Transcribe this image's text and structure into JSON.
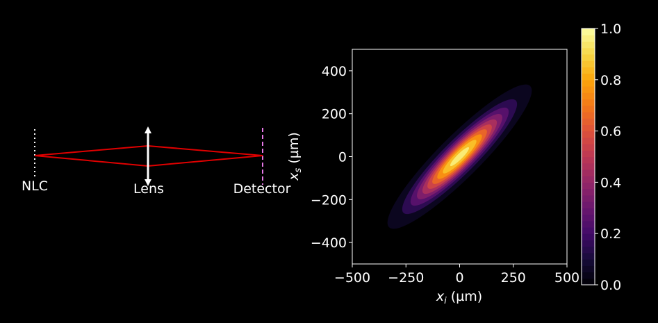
{
  "background": "#000000",
  "diagram": {
    "labels": {
      "source": "NLC",
      "lens": "Lens",
      "detector": "Detector"
    },
    "colors": {
      "rays": "#e00000",
      "source_line": "#ffffff",
      "lens": "#ffffff",
      "detector_line": "#e879e8"
    }
  },
  "chart_data": {
    "type": "heatmap",
    "title": "",
    "xlabel_main": "x",
    "xlabel_sub": "i",
    "xlabel_unit": " (µm)",
    "ylabel_main": "x",
    "ylabel_sub": "s",
    "ylabel_unit": " (µm)",
    "xlim": [
      -500,
      500
    ],
    "ylim": [
      -500,
      500
    ],
    "x_ticks": [
      -500,
      -250,
      0,
      250,
      500
    ],
    "x_tick_labels": [
      "−500",
      "−250",
      "0",
      "250",
      "500"
    ],
    "y_ticks": [
      400,
      200,
      0,
      -200,
      -400
    ],
    "y_tick_labels": [
      "400",
      "200",
      "0",
      "−200",
      "−400"
    ],
    "colormap": "inferno",
    "colorbar": {
      "range": [
        0,
        1
      ],
      "ticks": [
        0.0,
        0.2,
        0.4,
        0.6,
        0.8,
        1.0
      ],
      "tick_labels": [
        "0.0",
        "0.2",
        "0.4",
        "0.6",
        "0.8",
        "1.0"
      ]
    },
    "distribution": {
      "shape": "correlated 2D Gaussian (filled contours)",
      "center": [
        0,
        0
      ],
      "sigma_plus_um": 190,
      "sigma_minus_um": 40,
      "correlation_axis_deg": 45,
      "peak_value": 1.0,
      "levels": [
        0.05,
        0.15,
        0.25,
        0.35,
        0.45,
        0.55,
        0.65,
        0.75,
        0.85,
        0.95
      ]
    }
  }
}
